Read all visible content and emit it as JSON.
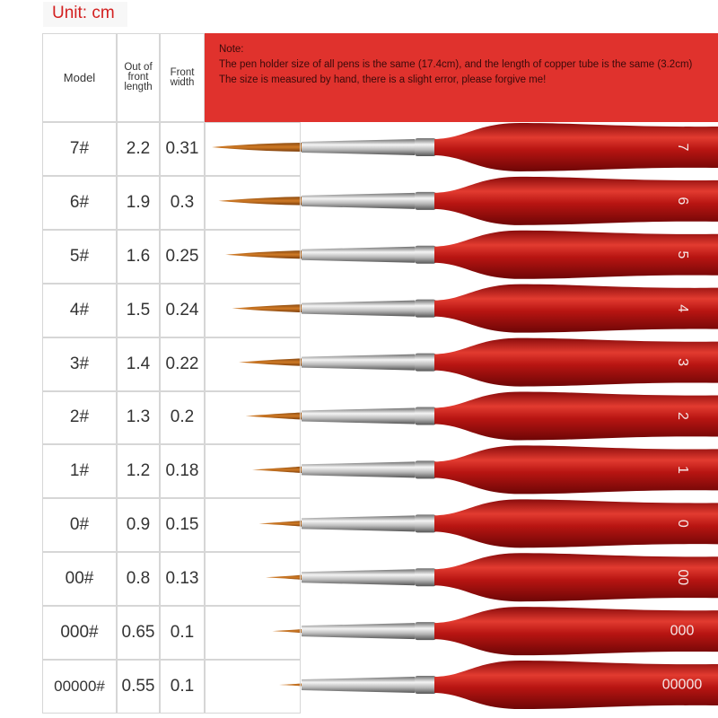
{
  "unit": "Unit: cm",
  "header": {
    "model": "Model",
    "length": "Out of front length",
    "width": "Front width"
  },
  "note": [
    "Note:",
    "The pen holder size of all pens is the same (17.4cm), and the length of copper tube is the same (3.2cm)",
    "The size is measured by hand, there is a slight error, please forgive me!"
  ],
  "table": {
    "rows": [
      [
        "7#",
        "2.2",
        "0.31",
        "7"
      ],
      [
        "6#",
        "1.9",
        "0.3",
        "6"
      ],
      [
        "5#",
        "1.6",
        "0.25",
        "5"
      ],
      [
        "4#",
        "1.5",
        "0.24",
        "4"
      ],
      [
        "3#",
        "1.4",
        "0.22",
        "3"
      ],
      [
        "2#",
        "1.3",
        "0.2",
        "2"
      ],
      [
        "1#",
        "1.2",
        "0.18",
        "1"
      ],
      [
        "0#",
        "0.9",
        "0.15",
        "0"
      ],
      [
        "00#",
        "0.8",
        "0.13",
        "00"
      ],
      [
        "000#",
        "0.65",
        "0.1",
        "000"
      ],
      [
        "00000#",
        "0.55",
        "0.1",
        "00000"
      ]
    ]
  }
}
